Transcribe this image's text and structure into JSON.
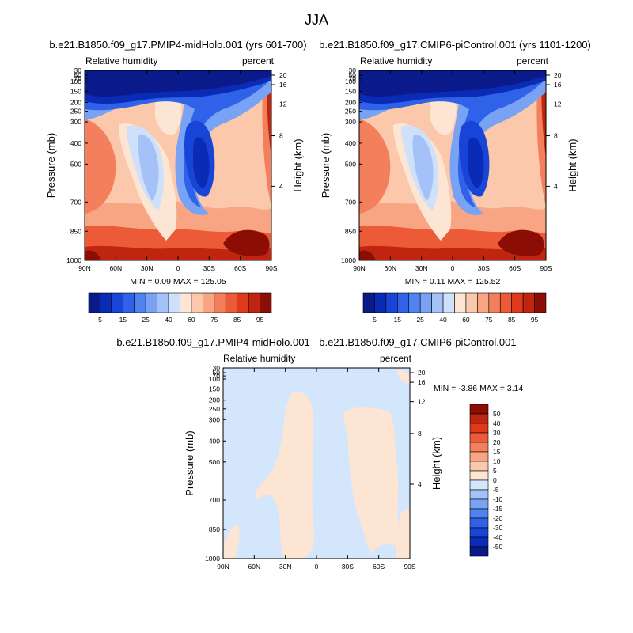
{
  "title": "JJA",
  "colors": {
    "abs_scale": [
      "#0a1a8a",
      "#0a2bb5",
      "#1845d8",
      "#2f62e8",
      "#5083f0",
      "#78a2f4",
      "#a4c2f8",
      "#cfe0fb",
      "#fde5d3",
      "#fbc8ab",
      "#f8a584",
      "#f47f5c",
      "#ec5a37",
      "#dd3a1c",
      "#c02510",
      "#8c0d04"
    ],
    "diff_scale": [
      "#0a1a8a",
      "#0a2bb5",
      "#1845d8",
      "#2f62e8",
      "#5083f0",
      "#78a2f4",
      "#a4c2f8",
      "#d3e6fc",
      "#fde5d3",
      "#fbc8ab",
      "#f8a584",
      "#f47f5c",
      "#ec5a37",
      "#dd3a1c",
      "#c02510",
      "#8c0d04"
    ]
  },
  "panels": [
    {
      "title": "b.e21.B1850.f09_g17.PMIP4-midHolo.001 (yrs 601-700)",
      "left_label": "Relative humidity",
      "right_label": "percent",
      "minmax": "MIN =   0.09  MAX = 125.05"
    },
    {
      "title": "b.e21.B1850.f09_g17.CMIP6-piControl.001 (yrs 1101-1200)",
      "left_label": "Relative humidity",
      "right_label": "percent",
      "minmax": "MIN =   0.11  MAX = 125.52"
    },
    {
      "title": "b.e21.B1850.f09_g17.PMIP4-midHolo.001 - b.e21.B1850.f09_g17.CMIP6-piControl.001",
      "left_label": "Relative humidity",
      "right_label": "percent",
      "minmax": "MIN =  -3.86  MAX =   3.14"
    }
  ],
  "chart_data": [
    {
      "type": "heatmap",
      "xlabel": "",
      "ylabel": "Pressure (mb)",
      "y2label": "Height (km)",
      "x_ticks": [
        "90N",
        "60N",
        "30N",
        "0",
        "30S",
        "60S",
        "90S"
      ],
      "y_ticks": [
        "30",
        "50",
        "70",
        "100",
        "150",
        "200",
        "250",
        "300",
        "400",
        "500",
        "700",
        "850",
        "1000"
      ],
      "y2_ticks": [
        "20",
        "16",
        "12",
        "8",
        "4"
      ],
      "levels": [
        "5",
        "15",
        "25",
        "40",
        "60",
        "75",
        "85",
        "95"
      ],
      "min": 0.09,
      "max": 125.05
    },
    {
      "type": "heatmap",
      "xlabel": "",
      "ylabel": "Pressure (mb)",
      "y2label": "Height (km)",
      "x_ticks": [
        "90N",
        "60N",
        "30N",
        "0",
        "30S",
        "60S",
        "90S"
      ],
      "y_ticks": [
        "30",
        "50",
        "70",
        "100",
        "150",
        "200",
        "250",
        "300",
        "400",
        "500",
        "700",
        "850",
        "1000"
      ],
      "y2_ticks": [
        "20",
        "16",
        "12",
        "8",
        "4"
      ],
      "levels": [
        "5",
        "15",
        "25",
        "40",
        "60",
        "75",
        "85",
        "95"
      ],
      "min": 0.11,
      "max": 125.52
    },
    {
      "type": "heatmap",
      "xlabel": "",
      "ylabel": "Pressure (mb)",
      "y2label": "Height (km)",
      "x_ticks": [
        "90N",
        "60N",
        "30N",
        "0",
        "30S",
        "60S",
        "90S"
      ],
      "y_ticks": [
        "30",
        "50",
        "70",
        "100",
        "150",
        "200",
        "250",
        "300",
        "400",
        "500",
        "700",
        "850",
        "1000"
      ],
      "y2_ticks": [
        "20",
        "16",
        "12",
        "8",
        "4"
      ],
      "levels": [
        "50",
        "40",
        "30",
        "20",
        "15",
        "10",
        "5",
        "0",
        "-5",
        "-10",
        "-15",
        "-20",
        "-30",
        "-40",
        "-50"
      ],
      "min": -3.86,
      "max": 3.14
    }
  ]
}
